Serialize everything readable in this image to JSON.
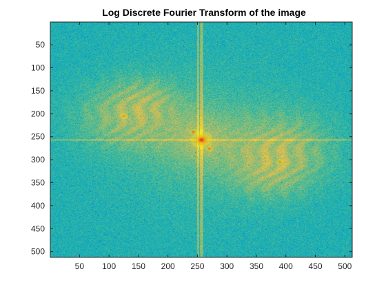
{
  "chart_data": {
    "type": "heatmap",
    "title": "Log Discrete Fourier Transform of the image",
    "xlabel": "",
    "ylabel": "",
    "xlim": [
      0.5,
      512.5
    ],
    "ylim": [
      0.5,
      512.5
    ],
    "y_reversed": true,
    "grid": false,
    "colormap": "parula",
    "colors": {
      "low": "#1ad6c4",
      "mid": "#c8e05a",
      "high": "#f7e91e",
      "peak": "#e0261a",
      "noise": "#1464d8"
    },
    "x_ticks": [
      50,
      100,
      150,
      200,
      250,
      300,
      350,
      400,
      450,
      500
    ],
    "y_ticks": [
      50,
      100,
      150,
      200,
      250,
      300,
      350,
      400,
      450,
      500
    ],
    "x_tick_labels": [
      "50",
      "100",
      "150",
      "200",
      "250",
      "300",
      "350",
      "400",
      "450",
      "500"
    ],
    "y_tick_labels": [
      "50",
      "100",
      "150",
      "200",
      "250",
      "300",
      "350",
      "400",
      "450",
      "500"
    ],
    "image_size": [
      512,
      512
    ],
    "center_peak": [
      257,
      257
    ],
    "cross_axes": {
      "horizontal_row": 257,
      "vertical_col": 257
    },
    "bright_lobes": [
      {
        "label": "left-lobe",
        "center": [
          130,
          210
        ],
        "spread": [
          85,
          70
        ],
        "level": 0.72
      },
      {
        "label": "right-lobe",
        "center": [
          395,
          280
        ],
        "spread": [
          85,
          80
        ],
        "level": 0.74
      },
      {
        "label": "upper-left-arc",
        "center": [
          160,
          160
        ],
        "spread": [
          55,
          45
        ],
        "level": 0.6
      },
      {
        "label": "lower-right-arc",
        "center": [
          370,
          340
        ],
        "spread": [
          60,
          50
        ],
        "level": 0.6
      }
    ],
    "hot_spots": [
      {
        "label": "center",
        "center": [
          257,
          257
        ],
        "level": 1.0
      },
      {
        "label": "upper-left-dot",
        "center": [
          243,
          240
        ],
        "level": 0.92
      },
      {
        "label": "lower-right-dot",
        "center": [
          270,
          276
        ],
        "level": 0.9
      },
      {
        "label": "left-dot",
        "center": [
          125,
          205
        ],
        "level": 0.78
      },
      {
        "label": "right-dot",
        "center": [
          390,
          305
        ],
        "level": 0.78
      }
    ]
  }
}
